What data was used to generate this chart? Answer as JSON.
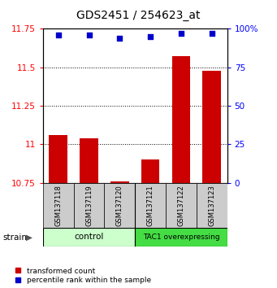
{
  "title": "GDS2451 / 254623_at",
  "samples": [
    "GSM137118",
    "GSM137119",
    "GSM137120",
    "GSM137121",
    "GSM137122",
    "GSM137123"
  ],
  "red_values": [
    11.06,
    11.04,
    10.76,
    10.9,
    11.57,
    11.48
  ],
  "blue_values": [
    96,
    96,
    94,
    95,
    97,
    97
  ],
  "ylim_left": [
    10.75,
    11.75
  ],
  "ylim_right": [
    0,
    100
  ],
  "yticks_left": [
    10.75,
    11.0,
    11.25,
    11.5,
    11.75
  ],
  "ytick_labels_left": [
    "10.75",
    "11",
    "11.25",
    "11.5",
    "11.75"
  ],
  "yticks_right": [
    0,
    25,
    50,
    75,
    100
  ],
  "ytick_labels_right": [
    "0",
    "25",
    "50",
    "75",
    "100%"
  ],
  "bar_color": "#cc0000",
  "dot_color": "#0000cc",
  "bar_width": 0.6,
  "tick_label_fontsize": 7.5,
  "title_fontsize": 10,
  "ctrl_color": "#ccffcc",
  "tac_color": "#44dd44",
  "label_box_color": "#cccccc",
  "legend_red": "transformed count",
  "legend_blue": "percentile rank within the sample"
}
